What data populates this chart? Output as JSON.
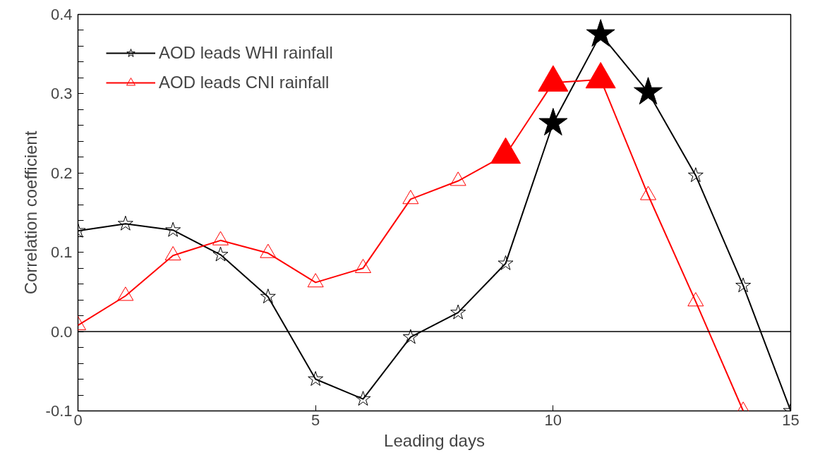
{
  "chart_data": {
    "type": "line",
    "xlabel": "Leading days",
    "ylabel": "Correlation coefficient",
    "x": [
      0,
      1,
      2,
      3,
      4,
      5,
      6,
      7,
      8,
      9,
      10,
      11,
      12,
      13,
      14,
      15
    ],
    "xlim": [
      0,
      15
    ],
    "xticks": [
      0,
      5,
      10,
      15
    ],
    "ylim": [
      -0.1,
      0.4
    ],
    "yticks": [
      -0.1,
      {
        "value": -0.08,
        "label": null
      },
      {
        "value": -0.06,
        "label": null
      },
      {
        "value": -0.04,
        "label": null
      },
      {
        "value": -0.02,
        "label": null
      },
      "0.0",
      {
        "value": 0.02,
        "label": null
      },
      {
        "value": 0.04,
        "label": null
      },
      {
        "value": 0.06,
        "label": null
      },
      {
        "value": 0.08,
        "label": null
      },
      0.1,
      {
        "value": 0.12,
        "label": null
      },
      {
        "value": 0.14,
        "label": null
      },
      {
        "value": 0.16,
        "label": null
      },
      {
        "value": 0.18,
        "label": null
      },
      0.2,
      {
        "value": 0.22,
        "label": null
      },
      {
        "value": 0.24,
        "label": null
      },
      {
        "value": 0.26,
        "label": null
      },
      {
        "value": 0.28,
        "label": null
      },
      0.3,
      {
        "value": 0.32,
        "label": null
      },
      {
        "value": 0.34,
        "label": null
      },
      {
        "value": 0.36,
        "label": null
      },
      {
        "value": 0.38,
        "label": null
      },
      0.4
    ],
    "grid": false,
    "legend": "top left",
    "line_style": "solid",
    "ref_lines": [
      {
        "axis": "y",
        "value": 0,
        "color": "#000000"
      }
    ],
    "series": [
      {
        "name": "AOD leads WHI rainfall",
        "color": "#000000",
        "marker": "star",
        "values": [
          0.127,
          0.136,
          0.128,
          0.097,
          0.044,
          -0.06,
          -0.085,
          -0.007,
          0.024,
          0.086,
          0.263,
          0.375,
          0.302,
          0.197,
          0.058,
          -0.1
        ]
      },
      {
        "name": "AOD leads CNI rainfall",
        "color": "#ff0000",
        "marker": "triangle",
        "x": [
          0,
          1,
          2,
          3,
          4,
          5,
          6,
          7,
          8,
          9,
          10,
          11,
          12,
          13,
          14
        ],
        "values": [
          0.008,
          0.045,
          0.096,
          0.115,
          0.099,
          0.062,
          0.08,
          0.167,
          0.19,
          0.223,
          0.314,
          0.318,
          0.172,
          0.038,
          -0.1
        ]
      },
      {
        "type": "scatter",
        "color": "#000000",
        "marker": "star",
        "x": [
          10,
          11,
          12
        ],
        "values": [
          0.263,
          0.375,
          0.302
        ]
      },
      {
        "type": "scatter",
        "color": "#ff0000",
        "marker": "triangle",
        "x": [
          9,
          10,
          11
        ],
        "values": [
          0.223,
          0.314,
          0.318
        ]
      }
    ]
  }
}
